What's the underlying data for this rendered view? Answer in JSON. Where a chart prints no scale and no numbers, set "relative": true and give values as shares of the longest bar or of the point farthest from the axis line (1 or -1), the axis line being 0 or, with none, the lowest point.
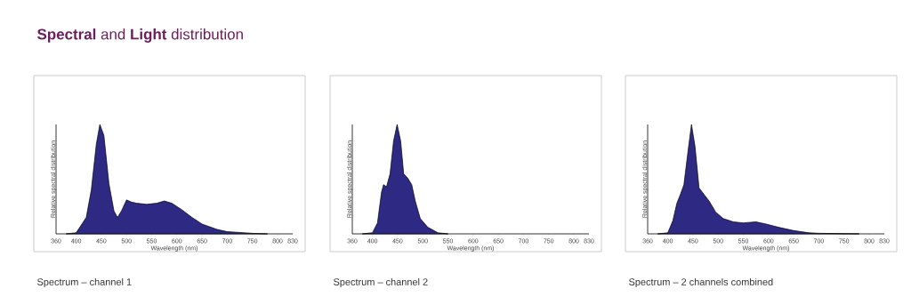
{
  "chart_data": [
    {
      "type": "area",
      "title": "**Spectral** and **Light** distribution",
      "xlabel": "Wavelength (nm)",
      "ylabel": "Relative spectral distribution",
      "relative": true,
      "annotations": [
        "Spectrum – channel 1"
      ],
      "xlim": [
        360,
        830
      ],
      "xticks": [
        360,
        400,
        450,
        500,
        550,
        600,
        650,
        700,
        750,
        800,
        830
      ],
      "x": [
        380,
        400,
        420,
        430,
        440,
        447,
        455,
        465,
        475,
        482,
        490,
        500,
        510,
        520,
        540,
        560,
        575,
        590,
        610,
        630,
        650,
        680,
        700,
        750,
        780
      ],
      "series": [
        {
          "color": "#2e2a84",
          "values": [
            0,
            0.01,
            0.15,
            0.4,
            0.82,
            1.0,
            0.9,
            0.46,
            0.21,
            0.15,
            0.21,
            0.31,
            0.29,
            0.28,
            0.27,
            0.28,
            0.3,
            0.28,
            0.22,
            0.15,
            0.09,
            0.04,
            0.02,
            0.005,
            0
          ]
        }
      ]
    },
    {
      "type": "area",
      "xlabel": "Wavelength (nm)",
      "ylabel": "Relative spectral distribution",
      "relative": true,
      "annotations": [
        "Spectrum – channel 2"
      ],
      "xlim": [
        360,
        830
      ],
      "xticks": [
        360,
        400,
        450,
        500,
        550,
        600,
        650,
        700,
        750,
        800,
        830
      ],
      "x": [
        380,
        400,
        410,
        418,
        422,
        428,
        435,
        442,
        449,
        456,
        462,
        470,
        478,
        485,
        495,
        510,
        530,
        550
      ],
      "series": [
        {
          "color": "#2e2a84",
          "values": [
            0,
            0.01,
            0.1,
            0.38,
            0.45,
            0.43,
            0.55,
            0.85,
            1.0,
            0.85,
            0.55,
            0.51,
            0.45,
            0.3,
            0.14,
            0.06,
            0.01,
            0
          ]
        }
      ]
    },
    {
      "type": "area",
      "xlabel": "Wavelength (nm)",
      "ylabel": "Relative spectral distribution",
      "relative": true,
      "annotations": [
        "Spectrum – 2 channels combined"
      ],
      "xlim": [
        360,
        830
      ],
      "xticks": [
        360,
        400,
        450,
        500,
        550,
        600,
        650,
        700,
        750,
        800,
        830
      ],
      "x": [
        380,
        400,
        410,
        418,
        425,
        432,
        440,
        447,
        454,
        462,
        472,
        482,
        495,
        510,
        530,
        550,
        575,
        595,
        620,
        650,
        680,
        700,
        780
      ],
      "series": [
        {
          "color": "#2e2a84",
          "values": [
            0,
            0.01,
            0.12,
            0.28,
            0.36,
            0.45,
            0.75,
            1.0,
            0.8,
            0.42,
            0.36,
            0.3,
            0.2,
            0.14,
            0.11,
            0.1,
            0.11,
            0.09,
            0.06,
            0.03,
            0.01,
            0.005,
            0
          ]
        }
      ]
    }
  ]
}
